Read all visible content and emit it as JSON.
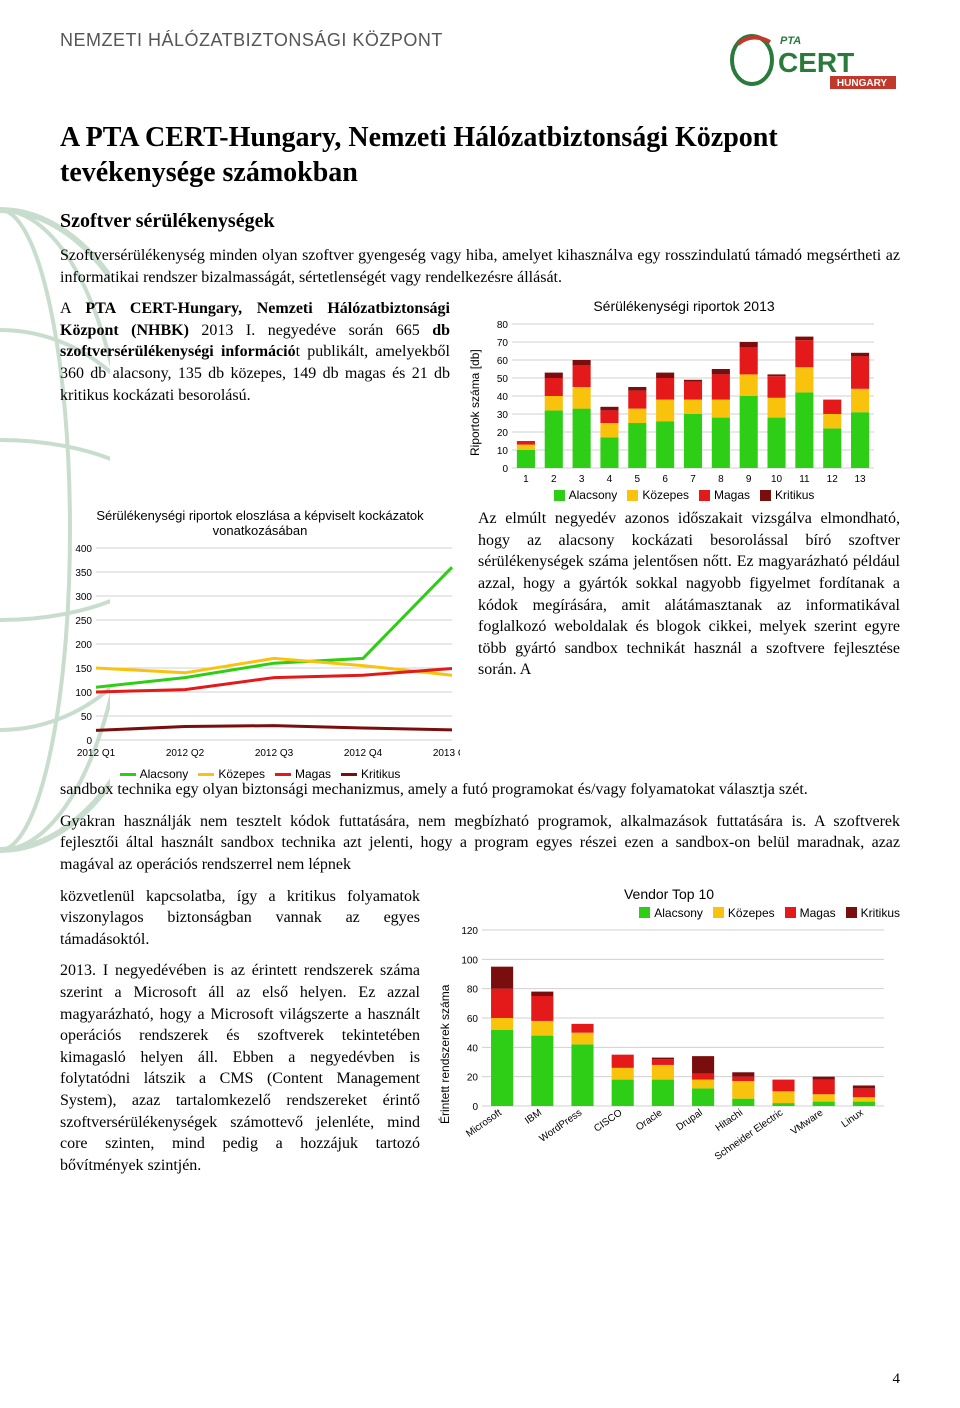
{
  "header": {
    "org": "NEMZETI HÁLÓZATBIZTONSÁGI KÖZPONT",
    "logo_top": "PTA",
    "logo_main": "CERT",
    "logo_sub": "HUNGARY"
  },
  "title": "A PTA CERT-Hungary, Nemzeti Hálózatbiztonsági Központ tevékenysége számokban",
  "subtitle": "Szoftver sérülékenységek",
  "para1": "Szoftversérülékenység minden olyan szoftver gyengeség vagy hiba, amelyet kihasználva egy rosszindulatú támadó megsértheti az informatikai rendszer bizalmasságát, sértetlenségét vagy rendelkezésre állását.",
  "para2_a": "A ",
  "para2_b": "PTA CERT-Hungary, Nemzeti Hálózatbiztonsági Központ (NHBK)",
  "para2_c": " 2013 I. negyedéve során 665 ",
  "para2_d": "db szoftversérülékenységi információ",
  "para2_e": "t publikált, amelyekből 360 db alacsony, 135 db közepes, 149 db magas és 21 db kritikus kockázati besorolású.",
  "para3": "Az elmúlt negyedév azonos időszakait vizsgálva elmondható, hogy az alacsony kockázati besorolással bíró szoftver sérülékenységek száma jelentősen nőtt. Ez magyarázható például azzal, hogy a gyártók sokkal nagyobb figyelmet fordítanak a kódok megírására, amit alátámasztanak az informatikával foglalkozó weboldalak és blogok cikkei, melyek szerint egyre több gyártó sandbox technikát használ a szoftvere fejlesztése során. A",
  "para3b": "sandbox technika egy olyan biztonsági mechanizmus, amely a futó programokat és/vagy folyamatokat választja szét.",
  "para4": "Gyakran használják nem tesztelt kódok futtatására, nem megbízható programok, alkalmazások futtatására is. A szoftverek fejlesztői által használt sandbox technika azt jelenti, hogy a program egyes részei ezen a sandbox-on belül maradnak, azaz magával az operációs rendszerrel nem lépnek",
  "para5": "közvetlenül kapcsolatba, így a kritikus folyamatok viszonylagos biztonságban vannak az egyes támadásoktól.",
  "para6": "2013. I negyedévében is az érintett rendszerek száma szerint a Microsoft áll az első helyen. Ez azzal magyarázható, hogy a Microsoft világszerte a használt operációs rendszerek és szoftverek tekintetében kimagasló helyen áll. Ebben a negyedévben is folytatódni látszik a CMS (Content Management System), azaz tartalomkezelő rendszereket érintő szoftversérülékenységek számottevő jelenléte, mind core szinten, mind pedig a hozzájuk tartozó bővítmények szintjén.",
  "page_number": "4",
  "colors": {
    "alacsony": "#2fce16",
    "kozepes": "#f9c20d",
    "magas": "#e41a1a",
    "kritikus": "#7a0e0e",
    "grid": "#d0d0d0",
    "bg": "#ffffff",
    "logo_green": "#2a7a3b",
    "logo_red": "#c0392b"
  },
  "legend_labels": {
    "alacsony": "Alacsony",
    "kozepes": "Közepes",
    "magas": "Magas",
    "kritikus": "Kritikus"
  },
  "stacked_chart": {
    "title": "Sérülékenységi riportok 2013",
    "ylabel": "Riportok száma [db]",
    "ymax": 80,
    "ytick": 10,
    "weeks": [
      1,
      2,
      3,
      4,
      5,
      6,
      7,
      8,
      9,
      10,
      11,
      12,
      13
    ],
    "series": {
      "alacsony": [
        10,
        32,
        33,
        17,
        25,
        26,
        30,
        28,
        40,
        28,
        42,
        22,
        31
      ],
      "kozepes": [
        3,
        8,
        12,
        8,
        8,
        12,
        8,
        10,
        12,
        11,
        14,
        8,
        13
      ],
      "magas": [
        2,
        10,
        12,
        7,
        10,
        12,
        10,
        14,
        15,
        12,
        15,
        8,
        18
      ],
      "kritikus": [
        0,
        3,
        3,
        2,
        2,
        3,
        1,
        3,
        3,
        1,
        2,
        0,
        2
      ]
    }
  },
  "line_chart": {
    "title": "Sérülékenységi riportok eloszlása a képviselt kockázatok vonatkozásában",
    "ymax": 400,
    "ytick": 50,
    "xcats": [
      "2012 Q1",
      "2012 Q2",
      "2012 Q3",
      "2012 Q4",
      "2013 Q1"
    ],
    "series": {
      "alacsony": [
        110,
        130,
        160,
        170,
        360
      ],
      "kozepes": [
        150,
        140,
        170,
        155,
        135
      ],
      "magas": [
        100,
        105,
        130,
        135,
        149
      ],
      "kritikus": [
        20,
        28,
        30,
        25,
        21
      ]
    }
  },
  "vendor_chart": {
    "title": "Vendor Top 10",
    "ymax": 120,
    "ytick": 20,
    "ylabel": "Érintett rendszerek száma",
    "vendors": [
      "Microsoft",
      "IBM",
      "WordPress",
      "CISCO",
      "Oracle",
      "Drupal",
      "Hitachi",
      "Schneider Electric",
      "VMware",
      "Linux"
    ],
    "series": {
      "alacsony": [
        52,
        48,
        42,
        18,
        18,
        12,
        5,
        2,
        3,
        3
      ],
      "kozepes": [
        8,
        10,
        8,
        8,
        10,
        6,
        12,
        8,
        5,
        3
      ],
      "magas": [
        20,
        17,
        6,
        9,
        4,
        4,
        3,
        8,
        10,
        6
      ],
      "kritikus": [
        15,
        3,
        0,
        0,
        1,
        12,
        3,
        0,
        2,
        2
      ]
    }
  }
}
